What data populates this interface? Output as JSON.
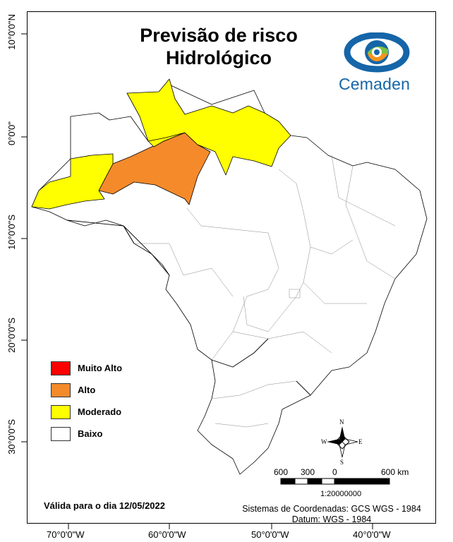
{
  "map": {
    "title_line1": "Previsão de risco",
    "title_line2": "Hidrológico",
    "logo_text": "Cemaden",
    "valid_date": "Válida para o dia 12/05/2022",
    "coordinate_system": "Sistemas de Coordenadas: GCS WGS - 1984",
    "datum": "Datum: WGS - 1984",
    "scale_ratio": "1:20000000",
    "scale_labels": [
      "600",
      "300",
      "0",
      "600 km"
    ],
    "compass": {
      "n": "N",
      "s": "S",
      "e": "E",
      "w": "W"
    }
  },
  "axes": {
    "latitude_labels": [
      "10°0'0\"N",
      "0°0'0\"",
      "10°0'0\"S",
      "20°0'0\"S",
      "30°0'0\"S"
    ],
    "longitude_labels": [
      "70°0'0\"W",
      "60°0'0\"W",
      "50°0'0\"W",
      "40°0'0\"W"
    ]
  },
  "legend": [
    {
      "label": "Muito Alto",
      "color": "#ff0000"
    },
    {
      "label": "Alto",
      "color": "#f58a2b"
    },
    {
      "label": "Moderado",
      "color": "#ffff00"
    },
    {
      "label": "Baixo",
      "color": "#ffffff"
    }
  ],
  "colors": {
    "moderado": "#ffff00",
    "alto": "#f58a2b",
    "baixo": "#ffffff",
    "logo_blue": "#1565a8"
  }
}
